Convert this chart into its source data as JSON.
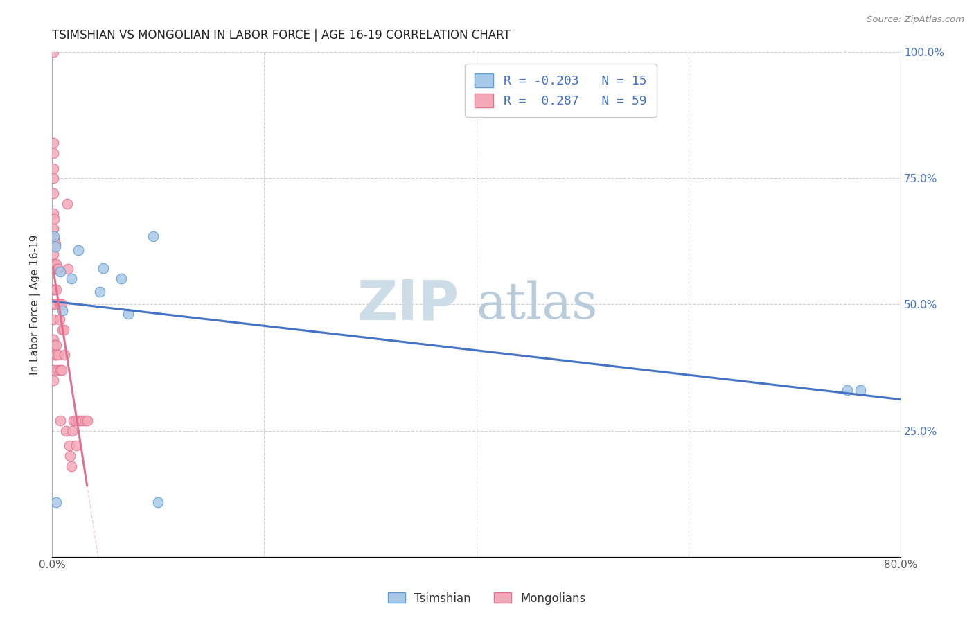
{
  "title": "TSIMSHIAN VS MONGOLIAN IN LABOR FORCE | AGE 16-19 CORRELATION CHART",
  "source": "Source: ZipAtlas.com",
  "ylabel": "In Labor Force | Age 16-19",
  "xlim": [
    0.0,
    0.8
  ],
  "ylim": [
    0.0,
    1.0
  ],
  "tsimshian_color": "#a8c8e8",
  "mongolian_color": "#f4a8b8",
  "tsimshian_edge": "#5b9bd5",
  "mongolian_edge": "#e07090",
  "trend_tsimshian_color": "#4472c4",
  "trend_mongolian_color": "#e07090",
  "watermark_zip": "ZIP",
  "watermark_atlas": "atlas",
  "watermark_color": "#ccdde8",
  "background_color": "#ffffff",
  "grid_color": "#cccccc",
  "tsimshian_x": [
    0.002,
    0.003,
    0.004,
    0.008,
    0.01,
    0.018,
    0.025,
    0.045,
    0.048,
    0.065,
    0.072,
    0.095,
    0.75,
    0.762,
    0.1
  ],
  "tsimshian_y": [
    0.635,
    0.615,
    0.108,
    0.565,
    0.488,
    0.552,
    0.608,
    0.525,
    0.572,
    0.552,
    0.482,
    0.635,
    0.33,
    0.33,
    0.108
  ],
  "mongolian_x": [
    0.001,
    0.001,
    0.001,
    0.001,
    0.001,
    0.001,
    0.001,
    0.001,
    0.001,
    0.001,
    0.001,
    0.001,
    0.001,
    0.001,
    0.001,
    0.001,
    0.001,
    0.001,
    0.002,
    0.002,
    0.002,
    0.002,
    0.002,
    0.003,
    0.003,
    0.003,
    0.003,
    0.004,
    0.004,
    0.004,
    0.004,
    0.005,
    0.005,
    0.006,
    0.006,
    0.007,
    0.008,
    0.008,
    0.008,
    0.009,
    0.009,
    0.01,
    0.011,
    0.012,
    0.013,
    0.014,
    0.015,
    0.016,
    0.017,
    0.018,
    0.019,
    0.02,
    0.022,
    0.023,
    0.025,
    0.027,
    0.029,
    0.031,
    0.033
  ],
  "mongolian_y": [
    1.0,
    0.82,
    0.8,
    0.77,
    0.75,
    0.72,
    0.68,
    0.65,
    0.63,
    0.6,
    0.57,
    0.53,
    0.5,
    0.47,
    0.43,
    0.4,
    0.37,
    0.35,
    0.67,
    0.63,
    0.58,
    0.53,
    0.42,
    0.62,
    0.57,
    0.5,
    0.4,
    0.58,
    0.53,
    0.42,
    0.4,
    0.57,
    0.37,
    0.57,
    0.4,
    0.47,
    0.5,
    0.37,
    0.27,
    0.5,
    0.37,
    0.45,
    0.45,
    0.4,
    0.25,
    0.7,
    0.57,
    0.22,
    0.2,
    0.18,
    0.25,
    0.27,
    0.27,
    0.22,
    0.27,
    0.27,
    0.27,
    0.27,
    0.27
  ]
}
